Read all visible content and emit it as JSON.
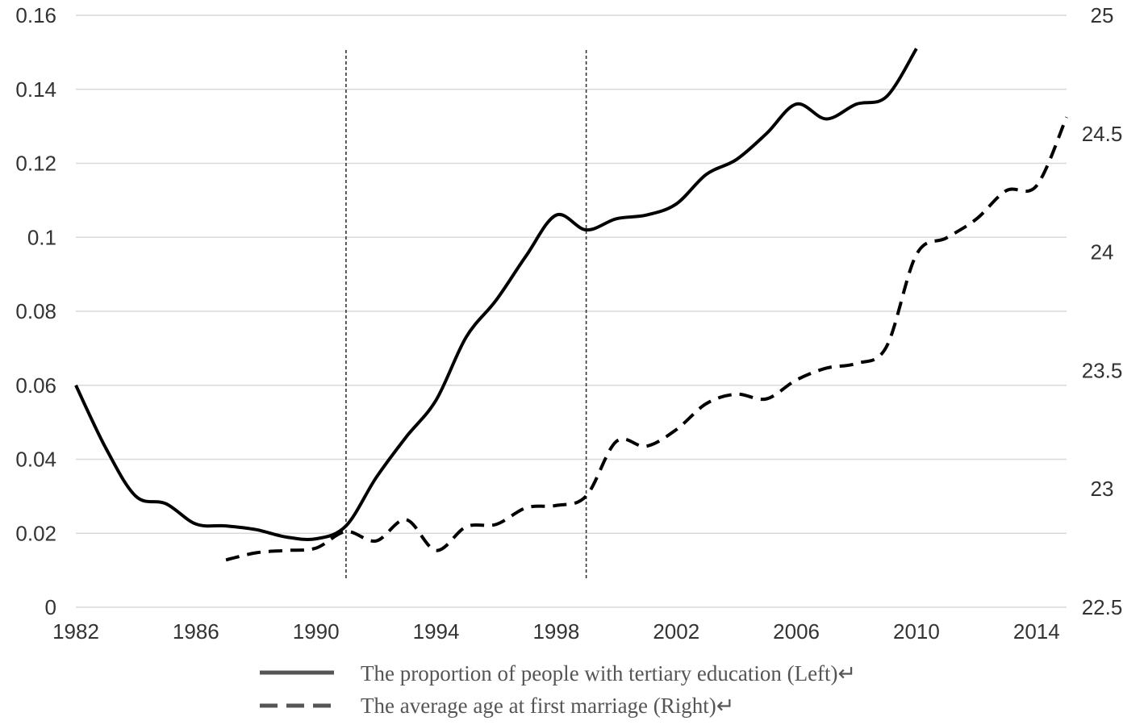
{
  "chart_data": {
    "type": "line",
    "title": "",
    "x_axis": {
      "range": [
        1982,
        2015
      ],
      "ticks": [
        1982,
        1986,
        1990,
        1994,
        1998,
        2002,
        2006,
        2010,
        2014
      ],
      "tick_labels": [
        "1982",
        "1986",
        "1990",
        "1994",
        "1998",
        "2002",
        "2006",
        "2010",
        "2014"
      ]
    },
    "y_left": {
      "range": [
        0,
        0.16
      ],
      "ticks": [
        0,
        0.02,
        0.04,
        0.06,
        0.08,
        0.1,
        0.12,
        0.14,
        0.16
      ],
      "tick_labels": [
        "0",
        "0.02",
        "0.04",
        "0.06",
        "0.08",
        "0.1",
        "0.12",
        "0.14",
        "0.16"
      ]
    },
    "y_right": {
      "range": [
        22.5,
        25
      ],
      "ticks": [
        22.5,
        23,
        23.5,
        24,
        24.5,
        25
      ],
      "tick_labels": [
        "22.5",
        "23",
        "23.5",
        "24",
        "24.5",
        "25"
      ]
    },
    "grid": true,
    "legend_position": "bottom",
    "reference_lines_x": [
      1991,
      1999
    ],
    "series": [
      {
        "name": "The proportion of people with tertiary education (Left)↵",
        "axis": "left",
        "style": "solid",
        "color": "#000000",
        "x": [
          1982,
          1983,
          1984,
          1985,
          1986,
          1987,
          1988,
          1989,
          1990,
          1991,
          1992,
          1993,
          1994,
          1995,
          1996,
          1997,
          1998,
          1999,
          2000,
          2001,
          2002,
          2003,
          2004,
          2005,
          2006,
          2007,
          2008,
          2009,
          2010
        ],
        "values": [
          0.06,
          0.043,
          0.03,
          0.028,
          0.0225,
          0.022,
          0.021,
          0.019,
          0.0185,
          0.022,
          0.035,
          0.046,
          0.056,
          0.073,
          0.083,
          0.095,
          0.106,
          0.102,
          0.105,
          0.106,
          0.109,
          0.117,
          0.121,
          0.128,
          0.136,
          0.132,
          0.136,
          0.138,
          0.151
        ]
      },
      {
        "name": "The average age at first marriage (Right)↵",
        "axis": "right",
        "style": "dashed",
        "color": "#000000",
        "x": [
          1987,
          1988,
          1989,
          1990,
          1991,
          1992,
          1993,
          1994,
          1995,
          1996,
          1997,
          1998,
          1999,
          2000,
          2001,
          2002,
          2003,
          2004,
          2005,
          2006,
          2007,
          2008,
          2009,
          2010,
          2011,
          2012,
          2013,
          2014,
          2015
        ],
        "values": [
          22.7,
          22.73,
          22.74,
          22.75,
          22.82,
          22.78,
          22.87,
          22.74,
          22.84,
          22.85,
          22.92,
          22.93,
          22.97,
          23.2,
          23.18,
          23.25,
          23.36,
          23.4,
          23.38,
          23.46,
          23.51,
          23.53,
          23.6,
          23.99,
          24.06,
          24.14,
          24.26,
          24.28,
          24.57
        ]
      }
    ]
  }
}
